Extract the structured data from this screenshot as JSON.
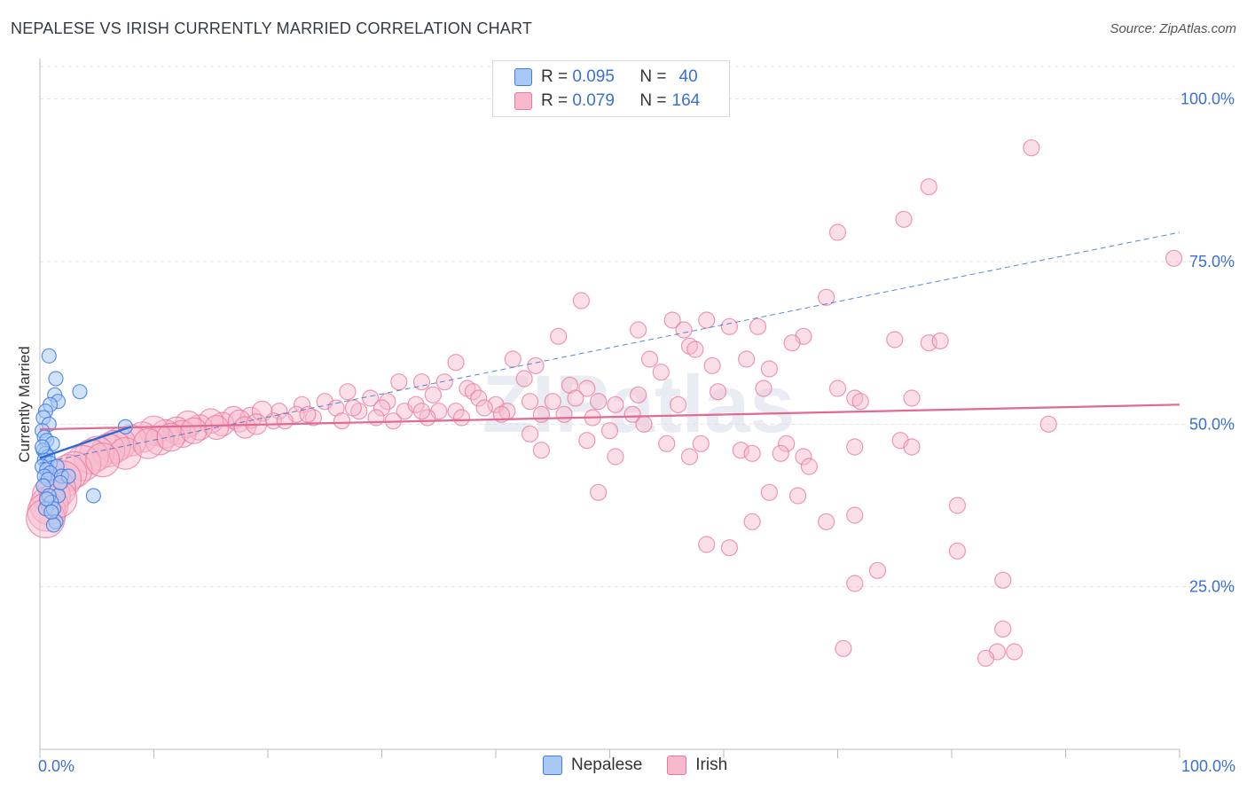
{
  "header": {
    "title": "NEPALESE VS IRISH CURRENTLY MARRIED CORRELATION CHART",
    "source": "Source: ZipAtlas.com"
  },
  "watermark": "ZIPatlas",
  "legend_top": {
    "rows": [
      {
        "r_label": "R =",
        "r_value": "0.095",
        "n_label": "N =",
        "n_value": "40"
      },
      {
        "r_label": "R =",
        "r_value": "0.079",
        "n_label": "N =",
        "n_value": "164"
      }
    ]
  },
  "colors": {
    "nepalese_fill": "#a9c8f5",
    "nepalese_stroke": "#3f7ee0",
    "nepalese_line": "#2f6ad0",
    "irish_fill": "#f7b8cb",
    "irish_stroke": "#e8789c",
    "irish_line": "#e06a92",
    "tick_text": "#3b6fd4",
    "grid": "#e2e2e2"
  },
  "chart_data": {
    "type": "scatter",
    "title": "NEPALESE VS IRISH CURRENTLY MARRIED CORRELATION CHART",
    "xlabel": "",
    "ylabel": "Currently Married",
    "xlim": [
      0,
      100
    ],
    "ylim": [
      0,
      105
    ],
    "x_tick_labels": [
      "0.0%",
      "100.0%"
    ],
    "y_ticks": [
      25,
      50,
      75,
      100
    ],
    "y_tick_labels": [
      "25.0%",
      "50.0%",
      "75.0%",
      "100.0%"
    ],
    "grid": true,
    "legend_position": "top-center",
    "series": [
      {
        "name": "Nepalese",
        "R": 0.095,
        "N": 40,
        "trend": {
          "x": [
            0,
            8
          ],
          "y": [
            44.8,
            49.6
          ]
        },
        "points": [
          {
            "x": 0.8,
            "y": 60.5
          },
          {
            "x": 1.4,
            "y": 57.0
          },
          {
            "x": 1.3,
            "y": 54.5
          },
          {
            "x": 1.6,
            "y": 53.5
          },
          {
            "x": 0.9,
            "y": 53.0
          },
          {
            "x": 3.5,
            "y": 55.0
          },
          {
            "x": 0.5,
            "y": 52.0
          },
          {
            "x": 0.3,
            "y": 51.0
          },
          {
            "x": 0.8,
            "y": 50.0
          },
          {
            "x": 0.2,
            "y": 49.0
          },
          {
            "x": 0.4,
            "y": 48.0
          },
          {
            "x": 0.6,
            "y": 47.5
          },
          {
            "x": 1.1,
            "y": 47.0
          },
          {
            "x": 0.3,
            "y": 46.0
          },
          {
            "x": 0.5,
            "y": 45.5
          },
          {
            "x": 0.7,
            "y": 45.0
          },
          {
            "x": 0.4,
            "y": 44.5
          },
          {
            "x": 0.9,
            "y": 44.0
          },
          {
            "x": 0.2,
            "y": 43.5
          },
          {
            "x": 1.5,
            "y": 43.5
          },
          {
            "x": 0.6,
            "y": 43.0
          },
          {
            "x": 0.9,
            "y": 42.5
          },
          {
            "x": 0.4,
            "y": 42.0
          },
          {
            "x": 1.9,
            "y": 42.0
          },
          {
            "x": 0.7,
            "y": 41.5
          },
          {
            "x": 0.3,
            "y": 40.5
          },
          {
            "x": 1.6,
            "y": 39.0
          },
          {
            "x": 0.8,
            "y": 39.0
          },
          {
            "x": 1.0,
            "y": 38.0
          },
          {
            "x": 0.5,
            "y": 37.0
          },
          {
            "x": 1.2,
            "y": 37.0
          },
          {
            "x": 1.4,
            "y": 35.0
          },
          {
            "x": 1.2,
            "y": 34.5
          },
          {
            "x": 4.7,
            "y": 39.0
          },
          {
            "x": 7.5,
            "y": 49.6
          },
          {
            "x": 2.5,
            "y": 42.0
          },
          {
            "x": 0.6,
            "y": 38.5
          },
          {
            "x": 1.0,
            "y": 36.5
          },
          {
            "x": 0.2,
            "y": 46.5
          },
          {
            "x": 1.8,
            "y": 41.0
          }
        ]
      },
      {
        "name": "Irish",
        "R": 0.079,
        "N": 164,
        "trend": {
          "x": [
            0,
            100
          ],
          "y": [
            49.2,
            53.0
          ]
        },
        "trend_dashed": {
          "x": [
            0,
            100
          ],
          "y": [
            44.0,
            79.5
          ]
        },
        "points": [
          {
            "x": 87.0,
            "y": 92.5
          },
          {
            "x": 78.0,
            "y": 86.5
          },
          {
            "x": 75.8,
            "y": 81.5
          },
          {
            "x": 70.0,
            "y": 79.5
          },
          {
            "x": 99.5,
            "y": 75.5
          },
          {
            "x": 69.0,
            "y": 69.5
          },
          {
            "x": 47.5,
            "y": 69.0
          },
          {
            "x": 55.5,
            "y": 66.0
          },
          {
            "x": 58.5,
            "y": 66.0
          },
          {
            "x": 52.5,
            "y": 64.5
          },
          {
            "x": 56.5,
            "y": 64.5
          },
          {
            "x": 60.5,
            "y": 65.0
          },
          {
            "x": 63.0,
            "y": 65.0
          },
          {
            "x": 45.5,
            "y": 63.5
          },
          {
            "x": 67.0,
            "y": 63.5
          },
          {
            "x": 66.0,
            "y": 62.5
          },
          {
            "x": 75.0,
            "y": 63.0
          },
          {
            "x": 78.0,
            "y": 62.5
          },
          {
            "x": 79.0,
            "y": 62.8
          },
          {
            "x": 57.0,
            "y": 62.0
          },
          {
            "x": 57.5,
            "y": 61.5
          },
          {
            "x": 41.5,
            "y": 60.0
          },
          {
            "x": 53.5,
            "y": 60.0
          },
          {
            "x": 62.0,
            "y": 60.0
          },
          {
            "x": 43.5,
            "y": 59.0
          },
          {
            "x": 36.5,
            "y": 59.5
          },
          {
            "x": 59.0,
            "y": 59.0
          },
          {
            "x": 64.0,
            "y": 58.5
          },
          {
            "x": 54.5,
            "y": 58.0
          },
          {
            "x": 42.5,
            "y": 57.0
          },
          {
            "x": 46.5,
            "y": 56.0
          },
          {
            "x": 31.5,
            "y": 56.5
          },
          {
            "x": 33.5,
            "y": 56.5
          },
          {
            "x": 35.5,
            "y": 56.5
          },
          {
            "x": 37.5,
            "y": 55.5
          },
          {
            "x": 38.0,
            "y": 55.0
          },
          {
            "x": 48.0,
            "y": 55.5
          },
          {
            "x": 59.5,
            "y": 55.0
          },
          {
            "x": 63.5,
            "y": 55.5
          },
          {
            "x": 70.0,
            "y": 55.5
          },
          {
            "x": 71.5,
            "y": 54.0
          },
          {
            "x": 76.5,
            "y": 54.0
          },
          {
            "x": 27.0,
            "y": 55.0
          },
          {
            "x": 29.0,
            "y": 54.0
          },
          {
            "x": 30.5,
            "y": 53.5
          },
          {
            "x": 34.5,
            "y": 54.5
          },
          {
            "x": 38.5,
            "y": 54.0
          },
          {
            "x": 40.0,
            "y": 53.0
          },
          {
            "x": 43.0,
            "y": 53.5
          },
          {
            "x": 45.0,
            "y": 53.5
          },
          {
            "x": 47.0,
            "y": 54.0
          },
          {
            "x": 49.0,
            "y": 53.5
          },
          {
            "x": 50.5,
            "y": 53.0
          },
          {
            "x": 52.5,
            "y": 54.5
          },
          {
            "x": 56.0,
            "y": 53.0
          },
          {
            "x": 72.0,
            "y": 53.5
          },
          {
            "x": 23.0,
            "y": 53.0
          },
          {
            "x": 25.0,
            "y": 53.5
          },
          {
            "x": 26.0,
            "y": 52.5
          },
          {
            "x": 28.0,
            "y": 52.0
          },
          {
            "x": 30.0,
            "y": 52.5
          },
          {
            "x": 32.0,
            "y": 52.0
          },
          {
            "x": 33.0,
            "y": 53.0
          },
          {
            "x": 35.0,
            "y": 52.0
          },
          {
            "x": 36.5,
            "y": 52.0
          },
          {
            "x": 39.0,
            "y": 52.5
          },
          {
            "x": 41.0,
            "y": 52.0
          },
          {
            "x": 44.0,
            "y": 51.5
          },
          {
            "x": 46.0,
            "y": 51.5
          },
          {
            "x": 48.5,
            "y": 51.0
          },
          {
            "x": 52.0,
            "y": 51.5
          },
          {
            "x": 21.0,
            "y": 52.0
          },
          {
            "x": 22.5,
            "y": 51.5
          },
          {
            "x": 24.0,
            "y": 51.0
          },
          {
            "x": 26.5,
            "y": 50.5
          },
          {
            "x": 29.5,
            "y": 51.0
          },
          {
            "x": 31.0,
            "y": 50.5
          },
          {
            "x": 34.0,
            "y": 51.0
          },
          {
            "x": 37.0,
            "y": 51.0
          },
          {
            "x": 40.5,
            "y": 51.5
          },
          {
            "x": 17.0,
            "y": 51.0
          },
          {
            "x": 18.5,
            "y": 51.0
          },
          {
            "x": 19.5,
            "y": 52.0
          },
          {
            "x": 20.5,
            "y": 50.5
          },
          {
            "x": 16.0,
            "y": 50.0
          },
          {
            "x": 15.0,
            "y": 50.5
          },
          {
            "x": 14.0,
            "y": 49.5
          },
          {
            "x": 13.0,
            "y": 50.0
          },
          {
            "x": 12.0,
            "y": 49.0
          },
          {
            "x": 11.0,
            "y": 48.5
          },
          {
            "x": 10.0,
            "y": 49.0
          },
          {
            "x": 9.0,
            "y": 48.0
          },
          {
            "x": 8.0,
            "y": 47.5
          },
          {
            "x": 7.0,
            "y": 47.0
          },
          {
            "x": 6.5,
            "y": 46.5
          },
          {
            "x": 6.0,
            "y": 46.0
          },
          {
            "x": 5.0,
            "y": 45.5
          },
          {
            "x": 4.5,
            "y": 45.0
          },
          {
            "x": 3.8,
            "y": 44.0
          },
          {
            "x": 3.0,
            "y": 43.0
          },
          {
            "x": 2.5,
            "y": 42.5
          },
          {
            "x": 2.0,
            "y": 41.5
          },
          {
            "x": 1.5,
            "y": 40.0
          },
          {
            "x": 1.0,
            "y": 39.0
          },
          {
            "x": 0.8,
            "y": 37.5
          },
          {
            "x": 0.6,
            "y": 36.5
          },
          {
            "x": 0.5,
            "y": 35.5
          },
          {
            "x": 1.6,
            "y": 38.5
          },
          {
            "x": 12.5,
            "y": 48.5
          },
          {
            "x": 10.5,
            "y": 47.5
          },
          {
            "x": 7.5,
            "y": 45.5
          },
          {
            "x": 5.5,
            "y": 44.5
          },
          {
            "x": 9.5,
            "y": 47.0
          },
          {
            "x": 11.5,
            "y": 48.0
          },
          {
            "x": 13.5,
            "y": 49.0
          },
          {
            "x": 15.5,
            "y": 49.5
          },
          {
            "x": 53.0,
            "y": 50.0
          },
          {
            "x": 50.0,
            "y": 49.0
          },
          {
            "x": 58.0,
            "y": 47.0
          },
          {
            "x": 61.5,
            "y": 46.0
          },
          {
            "x": 65.5,
            "y": 47.0
          },
          {
            "x": 62.5,
            "y": 45.5
          },
          {
            "x": 67.0,
            "y": 45.0
          },
          {
            "x": 71.5,
            "y": 46.5
          },
          {
            "x": 75.5,
            "y": 47.5
          },
          {
            "x": 76.5,
            "y": 46.5
          },
          {
            "x": 88.5,
            "y": 50.0
          },
          {
            "x": 43.0,
            "y": 48.5
          },
          {
            "x": 48.0,
            "y": 47.5
          },
          {
            "x": 55.0,
            "y": 47.0
          },
          {
            "x": 44.0,
            "y": 46.0
          },
          {
            "x": 57.0,
            "y": 45.0
          },
          {
            "x": 65.0,
            "y": 45.5
          },
          {
            "x": 50.5,
            "y": 45.0
          },
          {
            "x": 67.5,
            "y": 43.5
          },
          {
            "x": 49.0,
            "y": 39.5
          },
          {
            "x": 64.0,
            "y": 39.5
          },
          {
            "x": 66.5,
            "y": 39.0
          },
          {
            "x": 80.5,
            "y": 37.5
          },
          {
            "x": 71.5,
            "y": 36.0
          },
          {
            "x": 62.5,
            "y": 35.0
          },
          {
            "x": 69.0,
            "y": 35.0
          },
          {
            "x": 58.5,
            "y": 31.5
          },
          {
            "x": 60.5,
            "y": 31.0
          },
          {
            "x": 80.5,
            "y": 30.5
          },
          {
            "x": 73.5,
            "y": 27.5
          },
          {
            "x": 71.5,
            "y": 25.5
          },
          {
            "x": 84.5,
            "y": 26.0
          },
          {
            "x": 70.5,
            "y": 15.5
          },
          {
            "x": 84.5,
            "y": 18.5
          },
          {
            "x": 84.0,
            "y": 15.0
          },
          {
            "x": 85.5,
            "y": 15.0
          },
          {
            "x": 83.0,
            "y": 14.0
          },
          {
            "x": 17.5,
            "y": 50.5
          },
          {
            "x": 18.0,
            "y": 49.5
          },
          {
            "x": 19.0,
            "y": 50.0
          },
          {
            "x": 21.5,
            "y": 50.5
          },
          {
            "x": 23.5,
            "y": 51.5
          },
          {
            "x": 27.5,
            "y": 52.5
          },
          {
            "x": 33.5,
            "y": 52.0
          }
        ]
      }
    ]
  }
}
